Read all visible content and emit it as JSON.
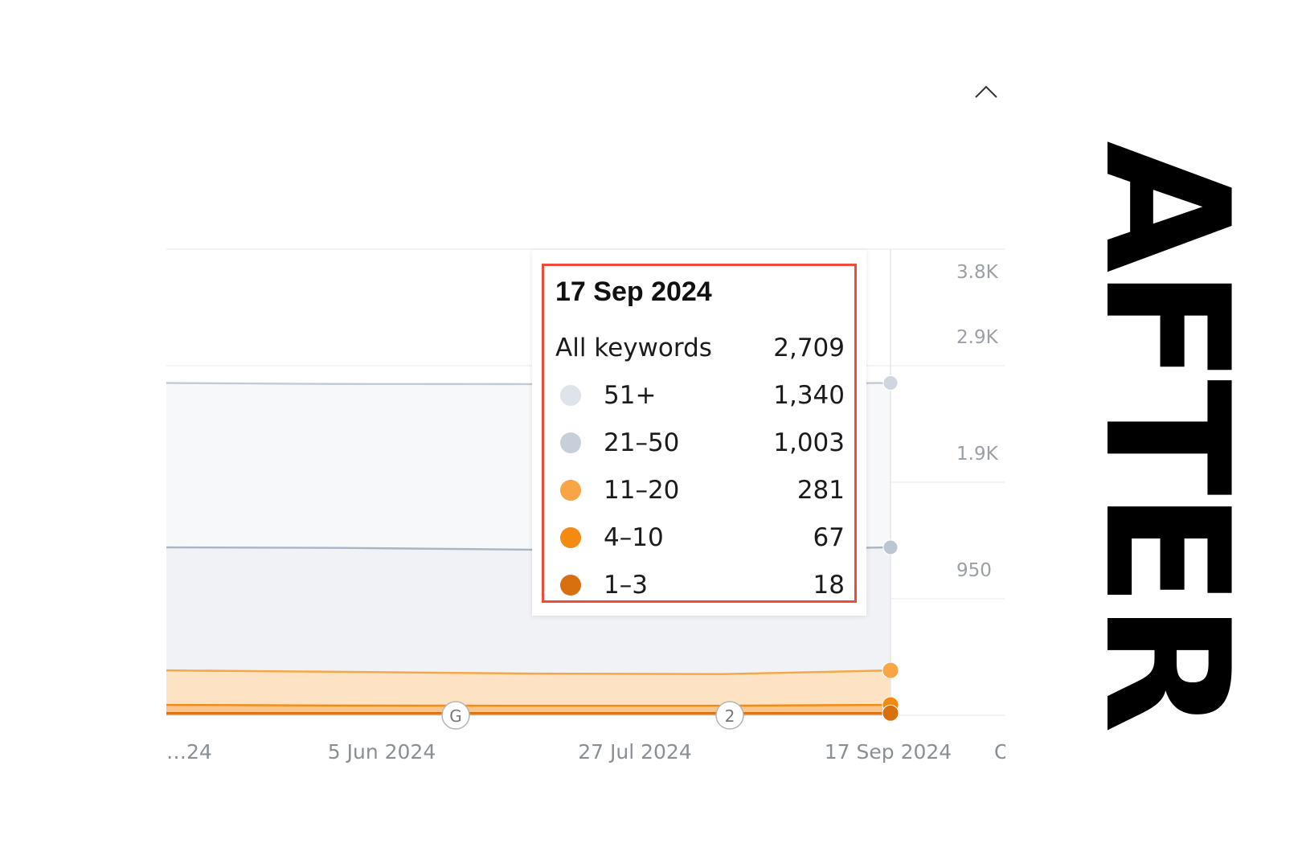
{
  "chart_data": {
    "type": "area",
    "x": [
      "5 Jun 2024",
      "27 Jul 2024",
      "17 Sep 2024"
    ],
    "y_ticks": [
      "950",
      "1.9K",
      "2.9K",
      "3.8K"
    ],
    "x_tick_labels": [
      "…24",
      "5 Jun 2024",
      "27 Jul 2024",
      "17 Sep 2024",
      "O"
    ],
    "series": [
      {
        "name": "51+",
        "value_at_cursor": 1340,
        "color": "#dfe4ea"
      },
      {
        "name": "21–50",
        "value_at_cursor": 1003,
        "color": "#c7d0da"
      },
      {
        "name": "11–20",
        "value_at_cursor": 281,
        "color": "#f7a545"
      },
      {
        "name": "4–10",
        "value_at_cursor": 67,
        "color": "#f48a12"
      },
      {
        "name": "1–3",
        "value_at_cursor": 18,
        "color": "#d8700f"
      }
    ],
    "stack_tops": {
      "all": [
        2709,
        2701,
        2700,
        2705,
        2709
      ],
      "upper2": [
        1369,
        1365,
        1350,
        1350,
        1369
      ],
      "orange_top": [
        366,
        355,
        340,
        336,
        366
      ],
      "orange_mid": [
        85,
        80,
        78,
        78,
        85
      ],
      "orange_low": [
        18,
        18,
        18,
        18,
        18
      ]
    },
    "ylim": [
      0,
      3800
    ],
    "annotations": [
      "G",
      "2"
    ],
    "grid": true
  },
  "tooltip": {
    "date": "17 Sep 2024",
    "total_label": "All keywords",
    "total_value": "2,709",
    "rows": [
      {
        "label": "51+",
        "value": "1,340",
        "color": "#dfe4ea"
      },
      {
        "label": "21–50",
        "value": "1,003",
        "color": "#c7d0da"
      },
      {
        "label": "11–20",
        "value": "281",
        "color": "#f7a545"
      },
      {
        "label": "4–10",
        "value": "67",
        "color": "#f48a12"
      },
      {
        "label": "1–3",
        "value": "18",
        "color": "#d8700f"
      }
    ]
  },
  "stamp": {
    "text": "AFTER"
  },
  "icons": {
    "collapse": "chevron-up-icon"
  }
}
